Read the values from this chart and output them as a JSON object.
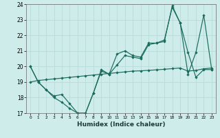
{
  "xlabel": "Humidex (Indice chaleur)",
  "background_color": "#ceecea",
  "grid_color": "#b8dcd9",
  "line_color": "#1a6b5a",
  "x_values": [
    0,
    1,
    2,
    3,
    4,
    5,
    6,
    7,
    8,
    9,
    10,
    11,
    12,
    13,
    14,
    15,
    16,
    17,
    18,
    19,
    20,
    21,
    22,
    23
  ],
  "line_zigzag": [
    20,
    19,
    18.5,
    18,
    17.7,
    17.3,
    17,
    17,
    18.3,
    19.7,
    19.5,
    20.1,
    20.7,
    20.6,
    20.5,
    21.4,
    21.5,
    21.6,
    23.9,
    22.8,
    20.9,
    19.3,
    19.8,
    19.8
  ],
  "line_upper": [
    20,
    19,
    18.5,
    18.1,
    18.2,
    17.6,
    17,
    17,
    18.3,
    19.8,
    19.5,
    20.8,
    21,
    20.7,
    20.6,
    21.5,
    21.5,
    21.7,
    23.8,
    22.8,
    19.5,
    20.9,
    23.3,
    19.8
  ],
  "line_lower": [
    19.0,
    19.1,
    19.15,
    19.2,
    19.25,
    19.3,
    19.35,
    19.4,
    19.45,
    19.5,
    19.55,
    19.6,
    19.65,
    19.7,
    19.72,
    19.75,
    19.78,
    19.82,
    19.86,
    19.9,
    19.7,
    19.75,
    19.85,
    19.9
  ],
  "xmin": 0,
  "xmax": 23,
  "ymin": 17,
  "ymax": 24,
  "yticks": [
    17,
    18,
    19,
    20,
    21,
    22,
    23,
    24
  ]
}
